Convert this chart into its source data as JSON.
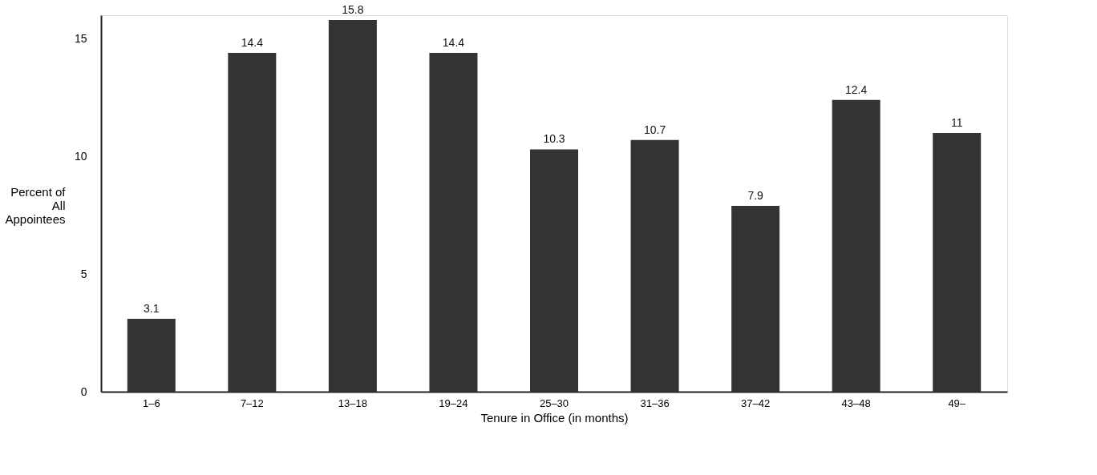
{
  "chart_data": {
    "type": "bar",
    "xlabel": "Tenure in Office (in months)",
    "ylabel": "Percent of\nAll\nAppointees",
    "categories": [
      "1–6",
      "7–12",
      "13–18",
      "19–24",
      "25–30",
      "31–36",
      "37–42",
      "43–48",
      "49–"
    ],
    "values": [
      3.1,
      14.4,
      15.8,
      14.4,
      10.3,
      10.7,
      7.9,
      12.4,
      11
    ],
    "color": "#333333",
    "ylim": [
      0,
      16
    ],
    "yticks": [
      0,
      5,
      10,
      15
    ],
    "grid": false,
    "data_labels": true
  }
}
